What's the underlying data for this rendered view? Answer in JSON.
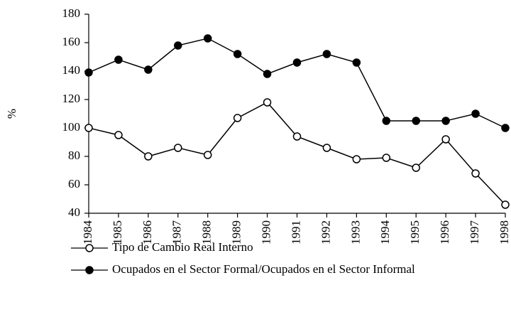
{
  "chart_data": {
    "type": "line",
    "y_label": "%",
    "categories": [
      "1984",
      "1985",
      "1986",
      "1987",
      "1988",
      "1989",
      "1990",
      "1991",
      "1992",
      "1993",
      "1994",
      "1995",
      "1996",
      "1997",
      "1998"
    ],
    "series": [
      {
        "name": "Tipo de Cambio Real Interno",
        "color": "#000000",
        "filled": false,
        "values": [
          100,
          95,
          80,
          86,
          81,
          107,
          118,
          94,
          86,
          78,
          79,
          72,
          92,
          68,
          46
        ]
      },
      {
        "name": "Ocupados en el Sector Formal/Ocupados en el Sector Informal",
        "color": "#000000",
        "filled": true,
        "values": [
          139,
          148,
          141,
          158,
          163,
          152,
          138,
          146,
          152,
          146,
          105,
          105,
          105,
          110,
          100
        ]
      }
    ],
    "ylim": [
      40,
      180
    ],
    "yticks": [
      40,
      60,
      80,
      100,
      120,
      140,
      160,
      180
    ],
    "grid": false
  }
}
